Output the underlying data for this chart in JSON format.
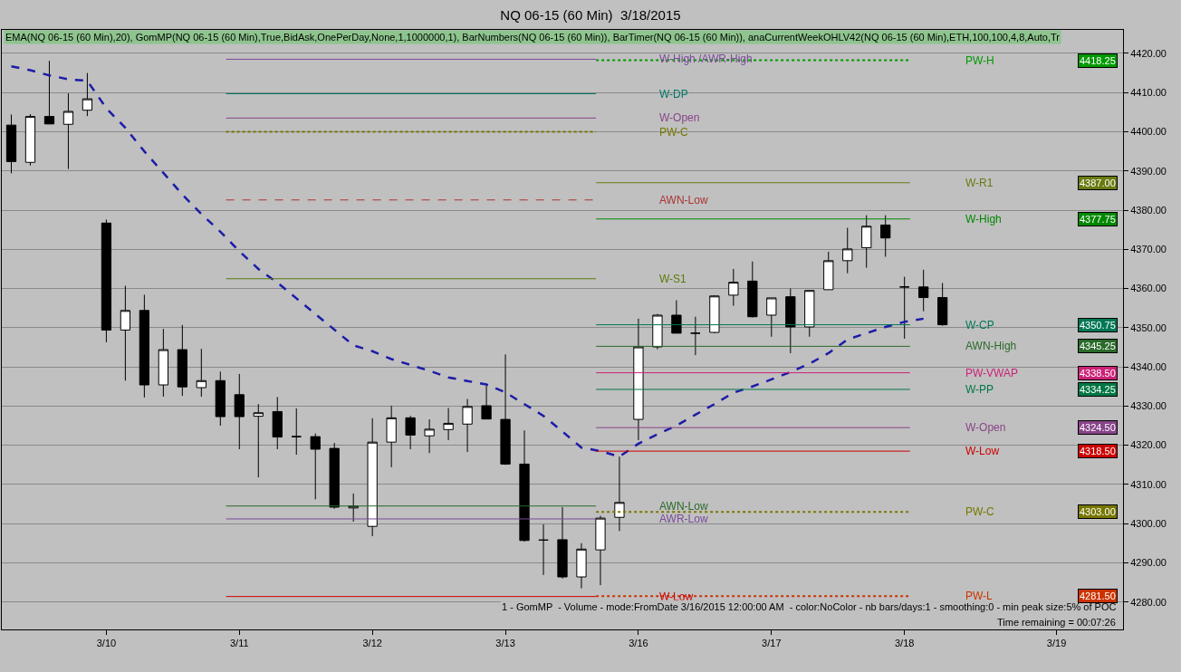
{
  "chart_data": {
    "type": "candlestick",
    "title": "NQ 06-15 (60 Min)  3/18/2015",
    "categories": [
      null,
      null,
      null,
      null,
      null,
      "3/10",
      null,
      null,
      null,
      null,
      null,
      null,
      "3/11",
      null,
      null,
      null,
      null,
      null,
      null,
      "3/12",
      null,
      null,
      null,
      null,
      null,
      null,
      "3/13",
      null,
      null,
      null,
      null,
      null,
      null,
      "3/16",
      null,
      null,
      null,
      null,
      null,
      null,
      "3/17",
      null,
      null,
      null,
      null,
      null,
      null,
      "3/18",
      null,
      null,
      null,
      null,
      null,
      null,
      null,
      "3/19",
      null,
      null,
      null
    ],
    "ohlc": [
      [
        4401.7,
        4404.4,
        4389.4,
        4392.4
      ],
      [
        4392.2,
        4404.5,
        4391.4,
        4403.9
      ],
      [
        4403.9,
        4418.1,
        4402,
        4402
      ],
      [
        4401.9,
        4409.8,
        4390.5,
        4405.2
      ],
      [
        4405.5,
        4415,
        4404,
        4408.4
      ],
      [
        4376.7,
        4377.6,
        4346.3,
        4349.4
      ],
      [
        4349.4,
        4360.7,
        4336.5,
        4354.4
      ],
      [
        4354.4,
        4358.4,
        4332.2,
        4335.4
      ],
      [
        4335.4,
        4349.7,
        4332.4,
        4344.4
      ],
      [
        4344.4,
        4350.7,
        4332.6,
        4334.9
      ],
      [
        4334.7,
        4344.6,
        4332.4,
        4336.5
      ],
      [
        4336.5,
        4338.8,
        4325,
        4327.3
      ],
      [
        4332.9,
        4338.2,
        4319,
        4327.3
      ],
      [
        4327.4,
        4330.5,
        4311.8,
        4328.3
      ],
      [
        4328.6,
        4332.3,
        4319,
        4322.1
      ],
      [
        4322.2,
        4329.4,
        4317.6,
        4322.2
      ],
      [
        4322.2,
        4323,
        4306.2,
        4319
      ],
      [
        4319.2,
        4320.6,
        4303.8,
        4304.2
      ],
      [
        4304,
        4307.7,
        4300.5,
        4304.5
      ],
      [
        4299.3,
        4326.9,
        4296.8,
        4320.8
      ],
      [
        4320.8,
        4330.1,
        4314.4,
        4327
      ],
      [
        4327,
        4327.5,
        4319,
        4322.6
      ],
      [
        4322.4,
        4326.6,
        4318,
        4324.1
      ],
      [
        4324,
        4329.5,
        4321.3,
        4325.6
      ],
      [
        4325.4,
        4331.8,
        4318.3,
        4329.9
      ],
      [
        4330.1,
        4335.2,
        4326.6,
        4326.7
      ],
      [
        4326.6,
        4343.2,
        4315,
        4315.2
      ],
      [
        4315.2,
        4323.8,
        4295.4,
        4295.7
      ],
      [
        4295.8,
        4299.8,
        4286.9,
        4295.8
      ],
      [
        4295.9,
        4304.2,
        4286,
        4286.4
      ],
      [
        4286.4,
        4295,
        4283.5,
        4293.5
      ],
      [
        4293.3,
        4302,
        4284.3,
        4301.4
      ],
      [
        4301.6,
        4317.1,
        4298.1,
        4305.4
      ],
      [
        4326.6,
        4352.3,
        4321.3,
        4345.1
      ],
      [
        4345.1,
        4353.5,
        4344.5,
        4353.2
      ],
      [
        4353.2,
        4357,
        4348.6,
        4348.6
      ],
      [
        4348.6,
        4352.8,
        4343,
        4348.6
      ],
      [
        4348.8,
        4358.3,
        4348.6,
        4358.1
      ],
      [
        4358.3,
        4365,
        4355.6,
        4361.6
      ],
      [
        4361.9,
        4366.9,
        4352.6,
        4352.8
      ],
      [
        4353.2,
        4357.6,
        4347.7,
        4357.6
      ],
      [
        4357.9,
        4360,
        4343.5,
        4350.2
      ],
      [
        4350.2,
        4359.5,
        4347.7,
        4359.5
      ],
      [
        4359.7,
        4369.4,
        4359.7,
        4367.1
      ],
      [
        4367.1,
        4375.5,
        4363.9,
        4370.1
      ],
      [
        4370.4,
        4378.7,
        4365.3,
        4375.9
      ],
      [
        4376.2,
        4378.7,
        4368.1,
        4372.9
      ],
      [
        4360.4,
        4363,
        4347.2,
        4360.4
      ],
      [
        4360.4,
        4364.8,
        4354.2,
        4357.7
      ],
      [
        4357.7,
        4361.4,
        4350.5,
        4350.75
      ],
      null,
      null,
      null,
      null,
      null,
      null,
      null,
      null,
      null
    ],
    "series": [
      {
        "type": "line",
        "color": "#1c1ca8",
        "line_style": "dashed",
        "values": [
          4416.7,
          4415.7,
          4414.4,
          4413.4,
          4413,
          4406,
          4401,
          4395,
          4389.5,
          4384,
          4379,
          4374.5,
          4369.5,
          4365,
          4361.5,
          4357.5,
          4353.5,
          4349.5,
          4345.5,
          4344,
          4342,
          4340.5,
          4339,
          4337.3,
          4336.4,
          4335.5,
          4333.5,
          4330.5,
          4327.5,
          4323.5,
          4319.4,
          4318.5,
          4317.1,
          4320.4,
          4322.8,
          4325,
          4327.8,
          4330.5,
          4333.4,
          4335,
          4336.8,
          4338.7,
          4340.8,
          4343.5,
          4347,
          4348.6,
          4350.2,
          4351.5,
          4352.3,
          null,
          null,
          null,
          null,
          null,
          null,
          null,
          null,
          null,
          null
        ]
      }
    ],
    "ylim": [
      4273,
      4426
    ],
    "yticks": [
      {
        "value": 4280,
        "label": "4280.00"
      },
      {
        "value": 4290,
        "label": "4290.00"
      },
      {
        "value": 4300,
        "label": "4300.00"
      },
      {
        "value": 4310,
        "label": "4310.00"
      },
      {
        "value": 4320,
        "label": "4320.00"
      },
      {
        "value": 4330,
        "label": "4330.00"
      },
      {
        "value": 4340,
        "label": "4340.00"
      },
      {
        "value": 4350,
        "label": "4350.00"
      },
      {
        "value": 4360,
        "label": "4360.00"
      },
      {
        "value": 4370,
        "label": "4370.00"
      },
      {
        "value": 4380,
        "label": "4380.00"
      },
      {
        "value": 4390,
        "label": "4390.00"
      },
      {
        "value": 4400,
        "label": "4400.00"
      },
      {
        "value": 4410,
        "label": "4410.00"
      },
      {
        "value": 4420,
        "label": "4420.00"
      }
    ],
    "grid": "y",
    "ref_lines": [
      {
        "axis": "y",
        "value": 4418.25,
        "label": "PW-H",
        "color": "#009900",
        "line_style": "dotted"
      },
      {
        "axis": "y",
        "value": 4387,
        "label": "W-R1",
        "color": "#6a7a10",
        "line_style": "solid"
      },
      {
        "axis": "y",
        "value": 4377.75,
        "label": "W-High",
        "color": "#008800",
        "line_style": "solid"
      },
      {
        "axis": "y",
        "value": 4350.75,
        "label": "W-CP",
        "color": "#007755",
        "line_style": "solid"
      },
      {
        "axis": "y",
        "value": 4345.25,
        "label": "AWN-High",
        "color": "#2a6a2a",
        "line_style": "solid"
      },
      {
        "axis": "y",
        "value": 4338.5,
        "label": "PW-VWAP",
        "color": "#cc2277",
        "line_style": "solid"
      },
      {
        "axis": "y",
        "value": 4334.25,
        "label": "W-PP",
        "color": "#007744",
        "line_style": "solid"
      },
      {
        "axis": "y",
        "value": 4324.5,
        "label": "W-Open",
        "color": "#884488",
        "line_style": "solid"
      },
      {
        "axis": "y",
        "value": 4318.5,
        "label": "W-Low",
        "color": "#cc0000",
        "line_style": "solid"
      },
      {
        "axis": "y",
        "value": 4303,
        "label": "PW-C",
        "color": "#777700",
        "line_style": "dotted"
      },
      {
        "axis": "y",
        "value": 4281.5,
        "label": "PW-L",
        "color": "#cc3300",
        "line_style": "dotted"
      },
      {
        "axis": "y",
        "value": 4418.5,
        "label": "W-High /AWR-High",
        "color": "#7a4a9a",
        "line_style": "solid"
      },
      {
        "axis": "y",
        "value": 4409.7,
        "label": "W-DP",
        "color": "#007766",
        "line_style": "solid"
      },
      {
        "axis": "y",
        "value": 4403.5,
        "label": "W-Open",
        "color": "#884488",
        "line_style": "solid"
      },
      {
        "axis": "y",
        "value": 4400,
        "label": "PW-C",
        "color": "#777700",
        "line_style": "dotted"
      },
      {
        "axis": "y",
        "value": 4382.6,
        "label": "AWN-Low",
        "color": "#aa3333",
        "line_style": "dashed"
      },
      {
        "axis": "y",
        "value": 4362.5,
        "label": "W-S1",
        "color": "#5a7a10",
        "line_style": "solid"
      },
      {
        "axis": "y",
        "value": 4304.5,
        "label": "AWN-Low",
        "color": "#2a6a2a",
        "line_style": "solid"
      },
      {
        "axis": "y",
        "value": 4301.2,
        "label": "AWR-Low",
        "color": "#7a4a9a",
        "line_style": "solid"
      },
      {
        "axis": "y",
        "value": 4281.4,
        "label": "W-Low",
        "color": "#cc0000",
        "line_style": "solid"
      }
    ],
    "annotations": [
      "EMA(NQ 06-15 (60 Min),20), GomMP(NQ 06-15 (60 Min),True,BidAsk,OnePerDay,None,1,1000000,1), BarNumbers(NQ 06-15 (60 Min)), BarTimer(NQ 06-15 (60 Min)), anaCurrentWeekOHLV42(NQ 06-15 (60 Min),ETH,100,100,4,8,Auto,Tr",
      "1 - GomMP  - Volume - mode:FromDate 3/16/2015 12:00:00 AM  - color:NoColor - nb bars/days:1 - smoothing:0 - min peak size:5% of POC",
      "Time remaining = 00:07:26",
      {
        "text": "4418.25",
        "y": 4418.25
      },
      {
        "text": "4387.00",
        "y": 4387
      },
      {
        "text": "4377.75",
        "y": 4377.75
      },
      {
        "text": "4350.75",
        "y": 4350.75
      },
      {
        "text": "4345.25",
        "y": 4345.25
      },
      {
        "text": "4338.50",
        "y": 4338.5
      },
      {
        "text": "4334.25",
        "y": 4334.25
      },
      {
        "text": "4324.50",
        "y": 4324.5
      },
      {
        "text": "4318.50",
        "y": 4318.5
      },
      {
        "text": "4303.00",
        "y": 4303
      },
      {
        "text": "4281.50",
        "y": 4281.5
      }
    ]
  }
}
